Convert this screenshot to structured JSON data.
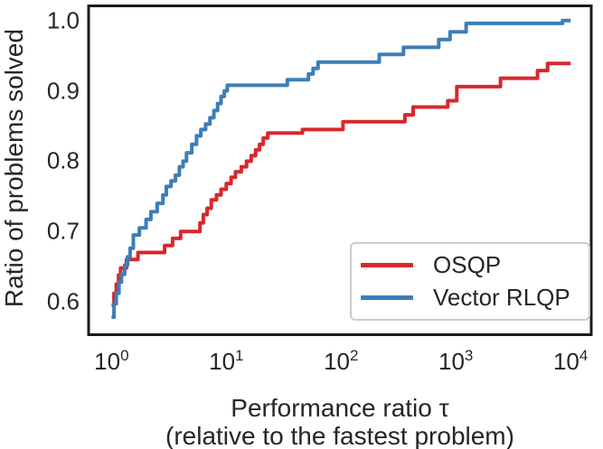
{
  "figure": {
    "background": "#ffffff",
    "spine_color": "#1a1a1a",
    "text_color": "#262626"
  },
  "chart_data": {
    "type": "line",
    "subtype": "step-post-performance-profile",
    "title": "",
    "xlabel_line1": "Performance ratio τ",
    "xlabel_line2": "(relative to the fastest problem)",
    "ylabel": "Ratio of problems solved",
    "x_scale": "log",
    "xlim_log": [
      -0.2,
      4.18
    ],
    "ylim": [
      0.553,
      1.021
    ],
    "x_end": 10000,
    "grid": "off",
    "x_ticks": [
      {
        "base": "10",
        "exp": "0",
        "log_value": 0
      },
      {
        "base": "10",
        "exp": "1",
        "log_value": 1
      },
      {
        "base": "10",
        "exp": "2",
        "log_value": 2
      },
      {
        "base": "10",
        "exp": "3",
        "log_value": 3
      },
      {
        "base": "10",
        "exp": "4",
        "log_value": 4
      }
    ],
    "y_ticks": [
      {
        "label": "1.0",
        "value": 1.0
      },
      {
        "label": "0.9",
        "value": 0.9
      },
      {
        "label": "0.8",
        "value": 0.8
      },
      {
        "label": "0.7",
        "value": 0.7
      },
      {
        "label": "0.6",
        "value": 0.6
      }
    ],
    "legend": {
      "position": "lower right",
      "entries": [
        {
          "label": "OSQP",
          "color": "#d7282d"
        },
        {
          "label": "Vector RLQP",
          "color": "#3d7eb6"
        }
      ]
    },
    "series": [
      {
        "name": "OSQP",
        "color": "#d7282d",
        "points": [
          [
            1.0,
            0.595
          ],
          [
            1.05,
            0.612
          ],
          [
            1.1,
            0.625
          ],
          [
            1.15,
            0.638
          ],
          [
            1.2,
            0.648
          ],
          [
            1.35,
            0.66
          ],
          [
            1.7,
            0.67
          ],
          [
            2.9,
            0.68
          ],
          [
            3.4,
            0.69
          ],
          [
            4.0,
            0.7
          ],
          [
            5.9,
            0.712
          ],
          [
            6.3,
            0.724
          ],
          [
            6.8,
            0.733
          ],
          [
            7.4,
            0.745
          ],
          [
            8.2,
            0.752
          ],
          [
            9.0,
            0.76
          ],
          [
            10.0,
            0.768
          ],
          [
            11.0,
            0.777
          ],
          [
            12.0,
            0.785
          ],
          [
            13.5,
            0.792
          ],
          [
            15.0,
            0.8
          ],
          [
            16.5,
            0.808
          ],
          [
            18.0,
            0.816
          ],
          [
            19.5,
            0.824
          ],
          [
            21.0,
            0.833
          ],
          [
            23.0,
            0.84
          ],
          [
            46,
            0.845
          ],
          [
            104,
            0.856
          ],
          [
            360,
            0.866
          ],
          [
            425,
            0.877
          ],
          [
            850,
            0.886
          ],
          [
            1020,
            0.906
          ],
          [
            2450,
            0.918
          ],
          [
            5150,
            0.929
          ],
          [
            6300,
            0.939
          ]
        ]
      },
      {
        "name": "Vector RLQP",
        "color": "#3d7eb6",
        "points": [
          [
            1.0,
            0.578
          ],
          [
            1.05,
            0.597
          ],
          [
            1.1,
            0.612
          ],
          [
            1.16,
            0.628
          ],
          [
            1.22,
            0.639
          ],
          [
            1.3,
            0.652
          ],
          [
            1.38,
            0.664
          ],
          [
            1.45,
            0.676
          ],
          [
            1.55,
            0.695
          ],
          [
            1.75,
            0.705
          ],
          [
            2.0,
            0.717
          ],
          [
            2.2,
            0.728
          ],
          [
            2.5,
            0.74
          ],
          [
            2.8,
            0.752
          ],
          [
            3.0,
            0.764
          ],
          [
            3.3,
            0.772
          ],
          [
            3.6,
            0.78
          ],
          [
            3.9,
            0.792
          ],
          [
            4.2,
            0.8
          ],
          [
            4.5,
            0.812
          ],
          [
            5.0,
            0.824
          ],
          [
            5.5,
            0.836
          ],
          [
            6.0,
            0.845
          ],
          [
            6.6,
            0.853
          ],
          [
            7.2,
            0.862
          ],
          [
            7.8,
            0.872
          ],
          [
            8.4,
            0.882
          ],
          [
            9.0,
            0.892
          ],
          [
            9.6,
            0.9
          ],
          [
            10.2,
            0.908
          ],
          [
            34,
            0.916
          ],
          [
            52,
            0.924
          ],
          [
            57,
            0.932
          ],
          [
            63,
            0.941
          ],
          [
            215,
            0.952
          ],
          [
            350,
            0.962
          ],
          [
            710,
            0.973
          ],
          [
            890,
            0.984
          ],
          [
            1230,
            0.996
          ],
          [
            8500,
            1.0
          ]
        ]
      }
    ]
  }
}
